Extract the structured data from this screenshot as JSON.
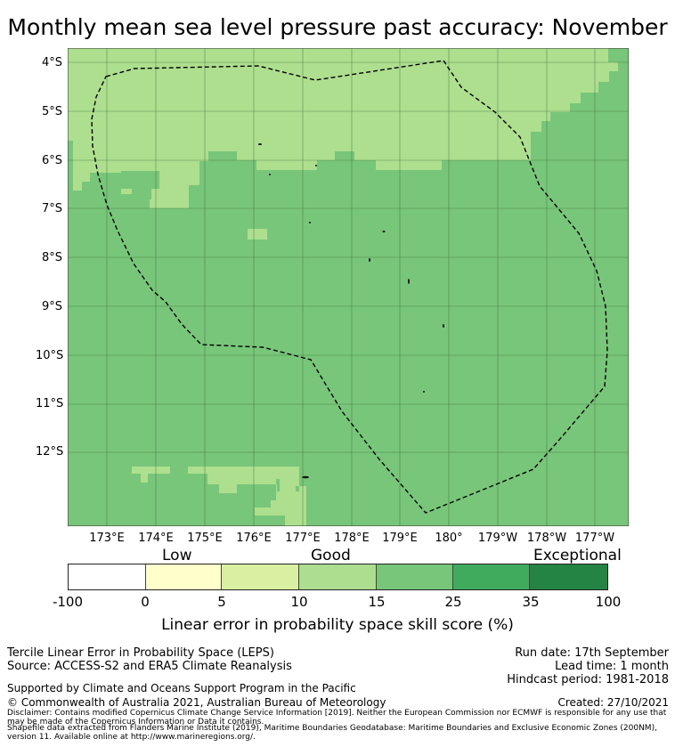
{
  "title": "Monthly mean sea level pressure past accuracy: November",
  "axes": {
    "lat_ticks": [
      "4°S",
      "5°S",
      "6°S",
      "7°S",
      "8°S",
      "9°S",
      "10°S",
      "11°S",
      "12°S"
    ],
    "lon_ticks": [
      "173°E",
      "174°E",
      "175°E",
      "176°E",
      "177°E",
      "178°E",
      "179°E",
      "180°",
      "179°W",
      "178°W",
      "177°W"
    ]
  },
  "map_colors": {
    "skill_10_15": "#addf8e",
    "skill_15_25": "#78c679",
    "gridline": "#3f6f40",
    "eez_boundary": "#000000"
  },
  "colorbar": {
    "categories": [
      "Low",
      "Good",
      "Exceptional"
    ],
    "ticks": [
      "-100",
      "0",
      "5",
      "10",
      "15",
      "25",
      "35",
      "100"
    ],
    "colors": [
      "#ffffff",
      "#ffffcc",
      "#d9f0a3",
      "#addd8e",
      "#78c679",
      "#41ab5d",
      "#238443"
    ],
    "label": "Linear error in probability space skill score (%)"
  },
  "footer": {
    "method": "Tercile Linear Error in Probability Space (LEPS)",
    "source": "Source: ACCESS-S2 and ERA5 Climate Reanalysis",
    "run_date": "Run date: 17th September",
    "lead_time": "Lead time: 1 month",
    "hindcast": "Hindcast period: 1981-2018",
    "support": "Supported by Climate and Oceans Support Program in the Pacific",
    "copyright": "© Commonwealth of Australia 2021, Australian Bureau of Meteorology",
    "created": "Created: 27/10/2021",
    "disclaimer": "Disclaimer: Contains modified Copernicus Climate Change Service Information [2019]. Neither the European Commission nor ECMWF is responsible for any use that may be made of the Copernicus Information or Data it contains.",
    "shapefile": "Shapefile data extracted from Flanders Marine Institute (2019), Maritime Boundaries Geodatabase: Maritime Boundaries and Exclusive Economic Zones (200NM), version 11. Available online at http://www.marineregions.org/."
  }
}
